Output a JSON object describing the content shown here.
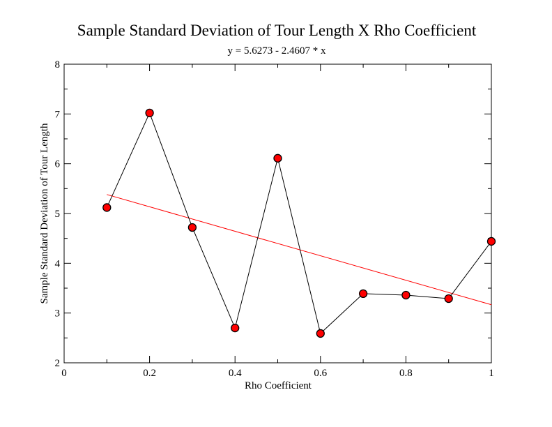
{
  "chart_data": {
    "type": "scatter",
    "title": "Sample Standard Deviation of Tour Length X Rho Coefficient",
    "subtitle": "y = 5.6273 - 2.4607 * x",
    "xlabel": "Rho Coefficient",
    "ylabel": "Sample Standard Deviation of Tour Length",
    "xlim": [
      0,
      1
    ],
    "ylim": [
      2,
      8
    ],
    "xticks": [
      0,
      0.2,
      0.4,
      0.6,
      0.8,
      1
    ],
    "xtick_labels": [
      "0",
      "0.2",
      "0.4",
      "0.6",
      "0.8",
      "1"
    ],
    "yticks": [
      2,
      3,
      4,
      5,
      6,
      7,
      8
    ],
    "ytick_labels": [
      "2",
      "3",
      "4",
      "5",
      "6",
      "7",
      "8"
    ],
    "x": [
      0.1,
      0.2,
      0.3,
      0.4,
      0.5,
      0.6,
      0.7,
      0.8,
      0.9,
      1.0
    ],
    "series": [
      {
        "values": [
          5.12,
          7.02,
          4.72,
          2.7,
          6.11,
          2.59,
          3.39,
          3.36,
          3.29,
          4.44
        ],
        "line_color": "#000000",
        "marker_fill": "#ff0000",
        "marker_edge": "#000000"
      }
    ],
    "regression": {
      "intercept": 5.6273,
      "slope": -2.4607,
      "x_range": [
        0.1,
        1.0
      ],
      "color": "#ff0000"
    },
    "grid": false,
    "legend": "none"
  }
}
